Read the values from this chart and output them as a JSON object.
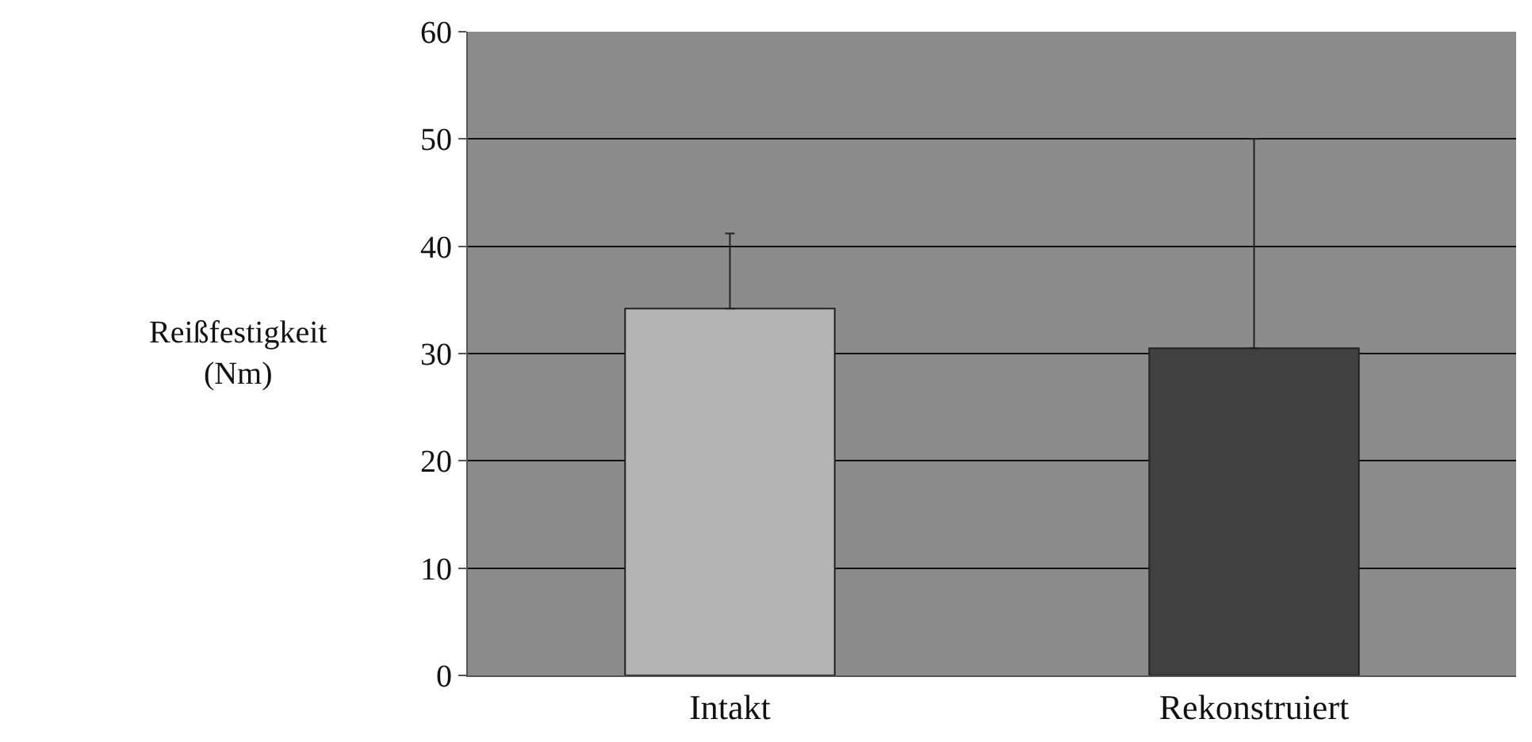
{
  "chart_data": {
    "type": "bar",
    "ylabel": "Reißfestigkeit (Nm)",
    "categories": [
      "Intakt",
      "Rekonstruiert"
    ],
    "values": [
      34.2,
      30.5
    ],
    "colors": [
      "#b4b4b4",
      "#404040"
    ],
    "errors": [
      [
        34.2,
        41.2
      ],
      [
        30.5,
        50.0
      ]
    ],
    "ylim": [
      0,
      60
    ],
    "yticks": [
      0,
      10,
      20,
      30,
      40,
      50,
      60
    ],
    "grid": "y"
  }
}
